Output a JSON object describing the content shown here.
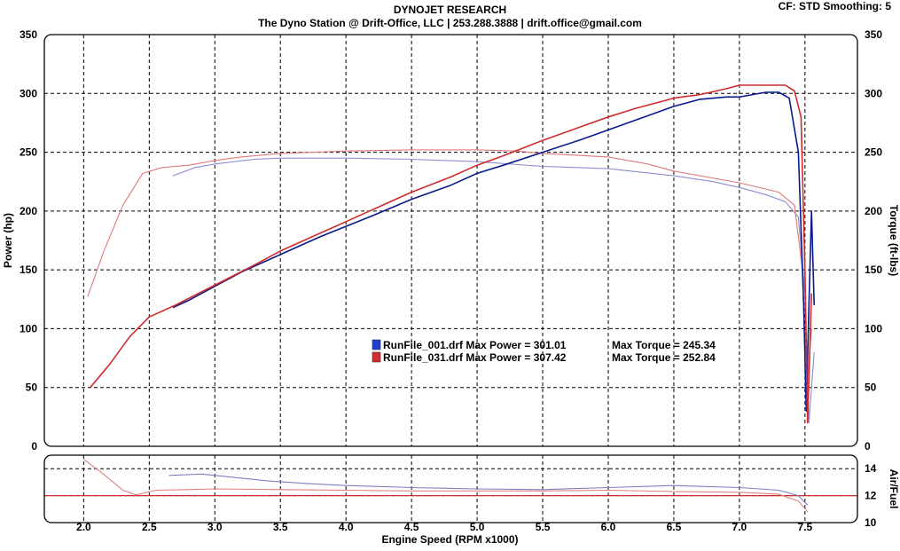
{
  "header": {
    "title": "DYNOJET RESEARCH",
    "subtitle": "The Dyno Station @ Drift-Office, LLC | 253.288.3888 | drift.office@gmail.com",
    "cf_smoothing": "CF: STD  Smoothing: 5"
  },
  "legend": [
    {
      "swatch": "#1f3fcf",
      "text": "RunFile_001.drf Max Power = 301.01",
      "torque_text": "Max Torque = 245.34"
    },
    {
      "swatch": "#d12b2b",
      "text": "RunFile_031.drf Max Power = 307.42",
      "torque_text": "Max Torque = 252.84"
    }
  ],
  "chart_data": [
    {
      "type": "line",
      "title": "",
      "xlabel": "Engine Speed (RPM x1000)",
      "ylabel": "Power (hp)",
      "y2label": "Torque (ft-lbs)",
      "xlim": [
        1.7,
        7.9
      ],
      "ylim": [
        0,
        350
      ],
      "y2lim": [
        0,
        350
      ],
      "x_ticks": [
        "2.0",
        "2.5",
        "3.0",
        "3.5",
        "4.0",
        "4.5",
        "5.0",
        "5.5",
        "6.0",
        "6.5",
        "7.0",
        "7.5"
      ],
      "y_ticks": [
        "0",
        "50",
        "100",
        "150",
        "200",
        "250",
        "300",
        "350"
      ],
      "y2_ticks": [
        "0",
        "50",
        "100",
        "150",
        "200",
        "250",
        "300",
        "350"
      ],
      "grid": true,
      "series": [
        {
          "name": "RunFile_001.drf",
          "measure": "power",
          "color": "#0a1a8c",
          "x": [
            2.68,
            2.8,
            3.0,
            3.2,
            3.5,
            3.8,
            4.0,
            4.2,
            4.5,
            4.8,
            5.0,
            5.2,
            5.5,
            5.8,
            6.0,
            6.3,
            6.5,
            6.7,
            6.9,
            7.0,
            7.1,
            7.2,
            7.3,
            7.38,
            7.45,
            7.49,
            7.51,
            7.53,
            7.55,
            7.57
          ],
          "y": [
            118,
            124,
            136,
            148,
            163,
            178,
            187,
            196,
            210,
            222,
            232,
            239,
            250,
            261,
            269,
            281,
            289,
            295,
            297,
            297,
            299,
            301,
            301,
            296,
            250,
            120,
            30,
            120,
            200,
            120
          ]
        },
        {
          "name": "RunFile_031.drf",
          "measure": "power",
          "color": "#d12b2b",
          "x": [
            2.05,
            2.2,
            2.35,
            2.5,
            2.7,
            3.0,
            3.3,
            3.5,
            3.8,
            4.0,
            4.3,
            4.5,
            4.8,
            5.0,
            5.2,
            5.5,
            5.8,
            6.0,
            6.2,
            6.5,
            6.7,
            6.9,
            7.0,
            7.2,
            7.35,
            7.42,
            7.47,
            7.5,
            7.52,
            7.55
          ],
          "y": [
            50,
            70,
            93,
            110,
            120,
            137,
            154,
            166,
            181,
            191,
            206,
            216,
            229,
            239,
            247,
            260,
            272,
            280,
            287,
            296,
            299,
            304,
            307,
            307,
            307,
            302,
            280,
            150,
            20,
            130
          ]
        },
        {
          "name": "RunFile_001.drf",
          "measure": "torque",
          "color": "#8a8ed0",
          "x": [
            2.68,
            2.85,
            3.0,
            3.3,
            3.5,
            4.0,
            4.5,
            5.0,
            5.5,
            6.0,
            6.5,
            6.8,
            7.0,
            7.2,
            7.35,
            7.45,
            7.5,
            7.53,
            7.57
          ],
          "y": [
            230,
            237,
            240,
            244,
            245,
            245,
            244,
            242,
            238,
            236,
            230,
            225,
            220,
            214,
            208,
            195,
            130,
            20,
            80
          ]
        },
        {
          "name": "RunFile_031.drf",
          "measure": "torque",
          "color": "#e07a7a",
          "x": [
            2.03,
            2.15,
            2.3,
            2.45,
            2.6,
            2.8,
            3.0,
            3.2,
            3.5,
            4.0,
            4.5,
            5.0,
            5.3,
            5.5,
            6.0,
            6.3,
            6.5,
            7.0,
            7.3,
            7.42,
            7.48,
            7.51,
            7.55
          ],
          "y": [
            127,
            165,
            205,
            232,
            237,
            239,
            243,
            246,
            249,
            251,
            252,
            252,
            251,
            249,
            246,
            240,
            234,
            224,
            216,
            205,
            150,
            40,
            100
          ]
        }
      ]
    },
    {
      "type": "line",
      "title": "",
      "xlabel": "Engine Speed (RPM x1000)",
      "ylabel": "Air/Fuel",
      "ylim": [
        10,
        15
      ],
      "y_ticks": [
        "10",
        "12",
        "14"
      ],
      "grid": true,
      "reference_line": {
        "y": 12,
        "color": "#d12b2b"
      },
      "series": [
        {
          "name": "RunFile_001.drf",
          "color": "#7f7fbf",
          "x": [
            2.65,
            2.9,
            3.1,
            3.4,
            3.7,
            4.0,
            4.5,
            5.0,
            5.5,
            6.0,
            6.5,
            7.0,
            7.3,
            7.45,
            7.52
          ],
          "y": [
            13.5,
            13.6,
            13.4,
            13.1,
            12.9,
            12.75,
            12.6,
            12.5,
            12.45,
            12.6,
            12.75,
            12.6,
            12.4,
            12.0,
            11.3
          ]
        },
        {
          "name": "RunFile_031.drf",
          "color": "#e08080",
          "x": [
            2.0,
            2.15,
            2.3,
            2.4,
            2.55,
            2.8,
            3.0,
            3.5,
            4.0,
            4.5,
            5.0,
            5.5,
            6.0,
            6.5,
            7.0,
            7.3,
            7.45,
            7.52
          ],
          "y": [
            14.7,
            13.6,
            12.4,
            12.05,
            12.4,
            12.45,
            12.5,
            12.45,
            12.4,
            12.35,
            12.35,
            12.35,
            12.4,
            12.3,
            12.25,
            12.1,
            11.6,
            10.8
          ]
        }
      ]
    }
  ]
}
